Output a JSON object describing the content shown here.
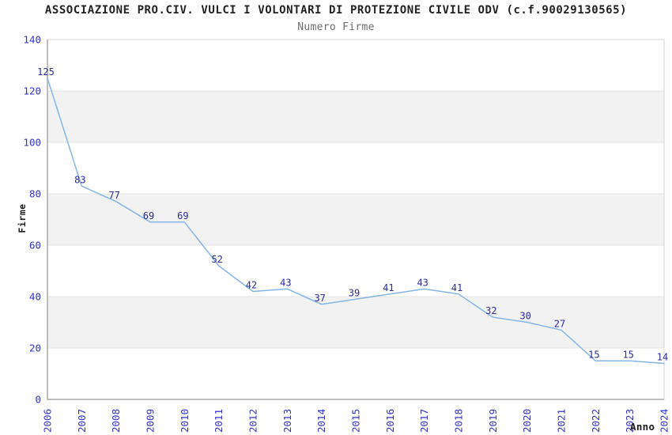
{
  "chart_data": {
    "type": "line",
    "title": "ASSOCIAZIONE PRO.CIV. VULCI I VOLONTARI DI PROTEZIONE CIVILE ODV (c.f.90029130565)",
    "subtitle": "Numero Firme",
    "xlabel": "Anno",
    "ylabel": "Firme",
    "x": [
      2006,
      2007,
      2008,
      2009,
      2010,
      2011,
      2012,
      2013,
      2014,
      2015,
      2016,
      2017,
      2018,
      2019,
      2020,
      2021,
      2022,
      2023,
      2024
    ],
    "values": [
      125,
      83,
      77,
      69,
      69,
      52,
      42,
      43,
      37,
      39,
      41,
      43,
      41,
      32,
      30,
      27,
      15,
      15,
      14
    ],
    "ylim": [
      0,
      140
    ],
    "ytick_step": 20,
    "grid": true,
    "legend": "none",
    "band_pattern": "alternating horizontal gray bands (120-100, 80-60, 40-20)",
    "colors": {
      "line": "#85b5e7",
      "point_label": "#2b2b9e",
      "tick_label": "#3333cc",
      "title": "#222222",
      "subtitle": "#6e6e6e",
      "axis_title": "#1a1a1a",
      "band": "#f2f2f2",
      "gridline": "#e4e4e4",
      "border": "#d6d6d6",
      "axis": "#bdbdbd",
      "background": "#ffffff"
    }
  }
}
